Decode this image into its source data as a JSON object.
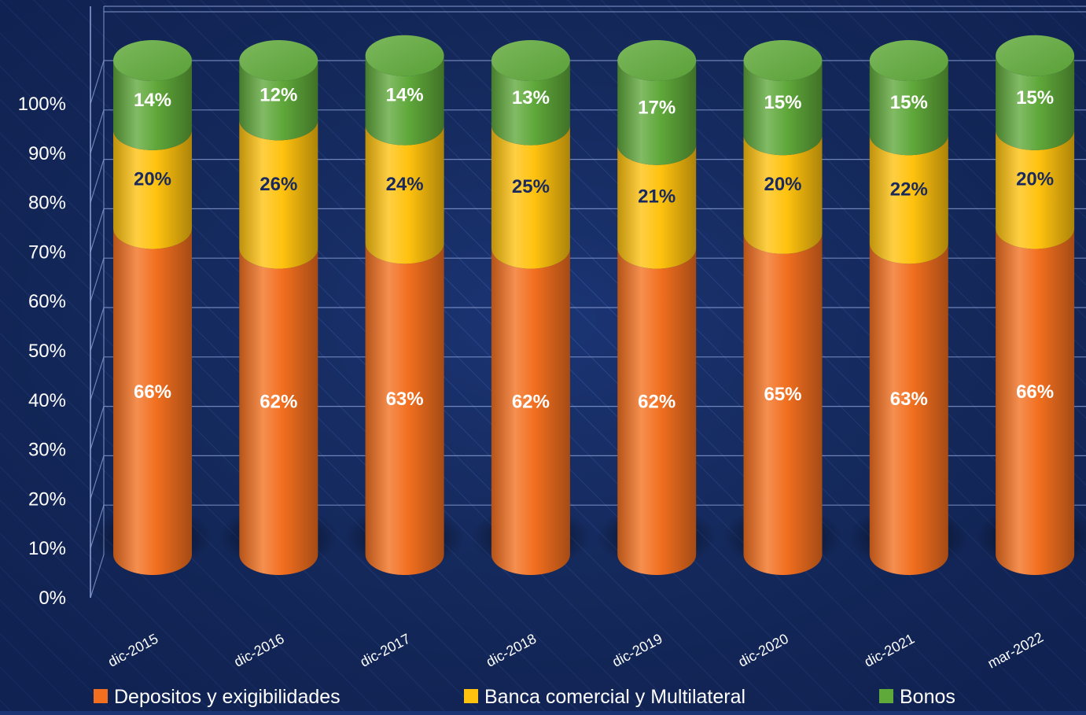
{
  "chart_data": {
    "type": "bar",
    "stacked": true,
    "categories": [
      "dic-2015",
      "dic-2016",
      "dic-2017",
      "dic-2018",
      "dic-2019",
      "dic-2020",
      "dic-2021",
      "mar-2022"
    ],
    "series": [
      {
        "name": "Depositos y exigibilidades",
        "values": [
          66,
          62,
          63,
          62,
          62,
          65,
          63,
          66
        ],
        "labels": [
          "66%",
          "62%",
          "63%",
          "62%",
          "62%",
          "65%",
          "63%",
          "66%"
        ],
        "color": "#f26f1f",
        "label_color": "#ffffff"
      },
      {
        "name": "Banca comercial y Multilateral",
        "values": [
          20,
          26,
          24,
          25,
          21,
          20,
          22,
          20
        ],
        "labels": [
          "20%",
          "26%",
          "24%",
          "25%",
          "21%",
          "20%",
          "22%",
          "20%"
        ],
        "color": "#ffc20e",
        "label_color": "#1a2a5c"
      },
      {
        "name": "Bonos",
        "values": [
          14,
          12,
          14,
          13,
          17,
          15,
          15,
          15
        ],
        "labels": [
          "14%",
          "12%",
          "14%",
          "13%",
          "17%",
          "15%",
          "15%",
          "15%"
        ],
        "color": "#5fa83a",
        "label_color": "#ffffff"
      }
    ],
    "y_ticks": [
      "0%",
      "10%",
      "20%",
      "30%",
      "40%",
      "50%",
      "60%",
      "70%",
      "80%",
      "90%",
      "100%"
    ],
    "ylim": [
      0,
      100
    ],
    "grid": true,
    "legend_position": "bottom",
    "background_color": "#1a3373",
    "grid_color": "#8ea2d8"
  }
}
